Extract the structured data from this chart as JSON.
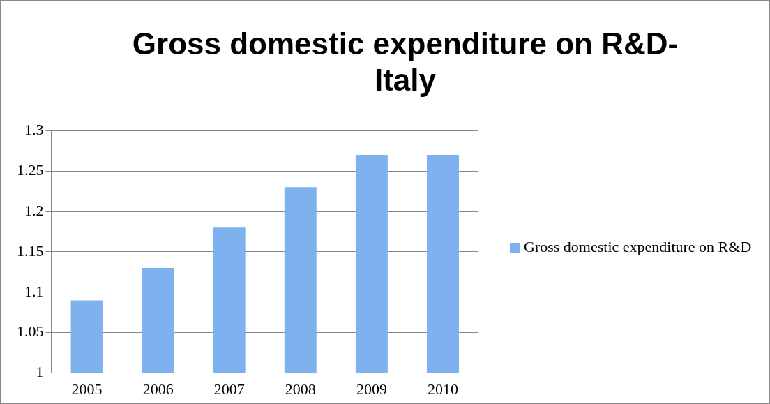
{
  "chart_data": {
    "type": "bar",
    "title": "Gross domestic expenditure on R&D-Italy",
    "categories": [
      "2005",
      "2006",
      "2007",
      "2008",
      "2009",
      "2010"
    ],
    "series": [
      {
        "name": "Gross domestic expenditure on R&D",
        "color": "#7db2ee",
        "values": [
          1.09,
          1.13,
          1.18,
          1.23,
          1.27,
          1.27
        ]
      }
    ],
    "ylim": [
      1,
      1.3
    ],
    "yticks": [
      1,
      1.05,
      1.1,
      1.15,
      1.2,
      1.25,
      1.3
    ],
    "grid": "y",
    "legend": "right"
  }
}
